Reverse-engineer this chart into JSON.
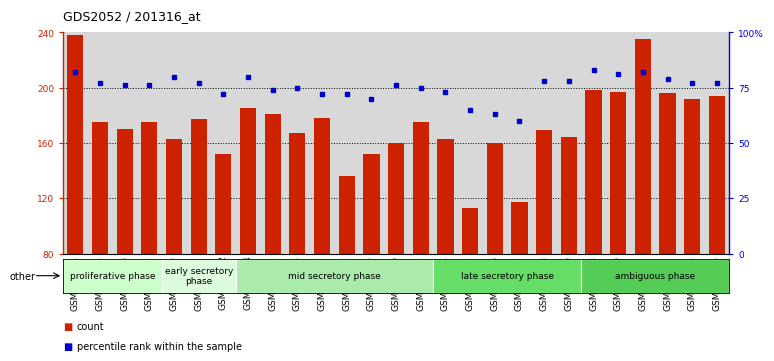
{
  "title": "GDS2052 / 201316_at",
  "samples": [
    "GSM109814",
    "GSM109815",
    "GSM109816",
    "GSM109817",
    "GSM109820",
    "GSM109821",
    "GSM109822",
    "GSM109824",
    "GSM109825",
    "GSM109826",
    "GSM109827",
    "GSM109828",
    "GSM109829",
    "GSM109830",
    "GSM109831",
    "GSM109834",
    "GSM109835",
    "GSM109836",
    "GSM109837",
    "GSM109838",
    "GSM109839",
    "GSM109818",
    "GSM109819",
    "GSM109823",
    "GSM109832",
    "GSM109833",
    "GSM109840"
  ],
  "counts": [
    238,
    175,
    170,
    175,
    163,
    177,
    152,
    185,
    181,
    167,
    178,
    136,
    152,
    160,
    175,
    163,
    113,
    160,
    117,
    169,
    164,
    198,
    197,
    235,
    196,
    192,
    194
  ],
  "percentiles": [
    82,
    77,
    76,
    76,
    80,
    77,
    72,
    80,
    74,
    75,
    72,
    72,
    70,
    76,
    75,
    73,
    65,
    63,
    60,
    78,
    78,
    83,
    81,
    82,
    79,
    77,
    77
  ],
  "phases": [
    {
      "label": "proliferative phase",
      "start": 0,
      "end": 4,
      "color": "#ccffcc"
    },
    {
      "label": "early secretory\nphase",
      "start": 4,
      "end": 7,
      "color": "#ddfcdd"
    },
    {
      "label": "mid secretory phase",
      "start": 7,
      "end": 15,
      "color": "#aaeaaa"
    },
    {
      "label": "late secretory phase",
      "start": 15,
      "end": 21,
      "color": "#66dd66"
    },
    {
      "label": "ambiguous phase",
      "start": 21,
      "end": 27,
      "color": "#55cc55"
    }
  ],
  "ylim_left": [
    80,
    240
  ],
  "ylim_right": [
    0,
    100
  ],
  "yticks_left": [
    80,
    120,
    160,
    200,
    240
  ],
  "yticks_right": [
    0,
    25,
    50,
    75,
    100
  ],
  "bar_color": "#cc2200",
  "dot_color": "#0000cc",
  "plot_bg_color": "#d8d8d8",
  "legend_count_color": "#cc2200",
  "legend_pct_color": "#0000cc",
  "other_label": "other",
  "title_fontsize": 9,
  "tick_fontsize": 6.5,
  "phase_fontsize": 6.5,
  "legend_fontsize": 7
}
